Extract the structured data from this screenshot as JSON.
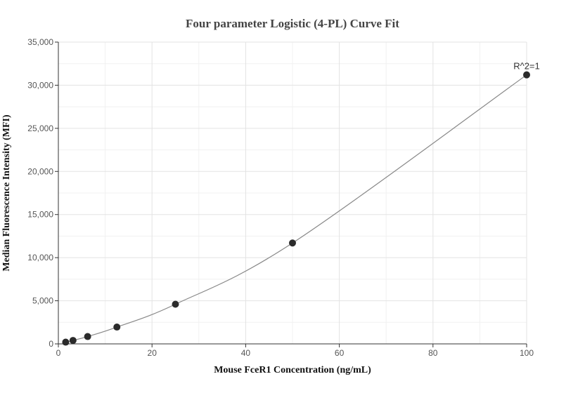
{
  "chart_data": {
    "type": "scatter",
    "title": "Four parameter Logistic (4-PL) Curve Fit",
    "xlabel": "Mouse FceR1 Concentration (ng/mL)",
    "ylabel": "Median Fluorescence Intensity (MFI)",
    "xlim": [
      0,
      100
    ],
    "ylim": [
      0,
      35000
    ],
    "x_ticks": [
      0,
      20,
      40,
      60,
      80,
      100
    ],
    "x_tick_labels": [
      "0",
      "20",
      "40",
      "60",
      "80",
      "100"
    ],
    "y_ticks": [
      0,
      5000,
      10000,
      15000,
      20000,
      25000,
      30000,
      35000
    ],
    "y_tick_labels": [
      "0",
      "5,000",
      "10,000",
      "15,000",
      "20,000",
      "25,000",
      "30,000",
      "35,000"
    ],
    "grid": true,
    "series": [
      {
        "x": [
          1.5625,
          3.125,
          6.25,
          12.5,
          25,
          50,
          100
        ],
        "y": [
          200,
          400,
          850,
          1950,
          4600,
          11700,
          31200
        ]
      }
    ],
    "fit_curve": {
      "type": "4-PL",
      "start_x": 1.5625,
      "end_x": 100
    },
    "annotation": {
      "text": "R^2=1",
      "x": 100,
      "y": 31200
    },
    "point_color": "#2b2b2b",
    "curve_color": "#888888"
  }
}
